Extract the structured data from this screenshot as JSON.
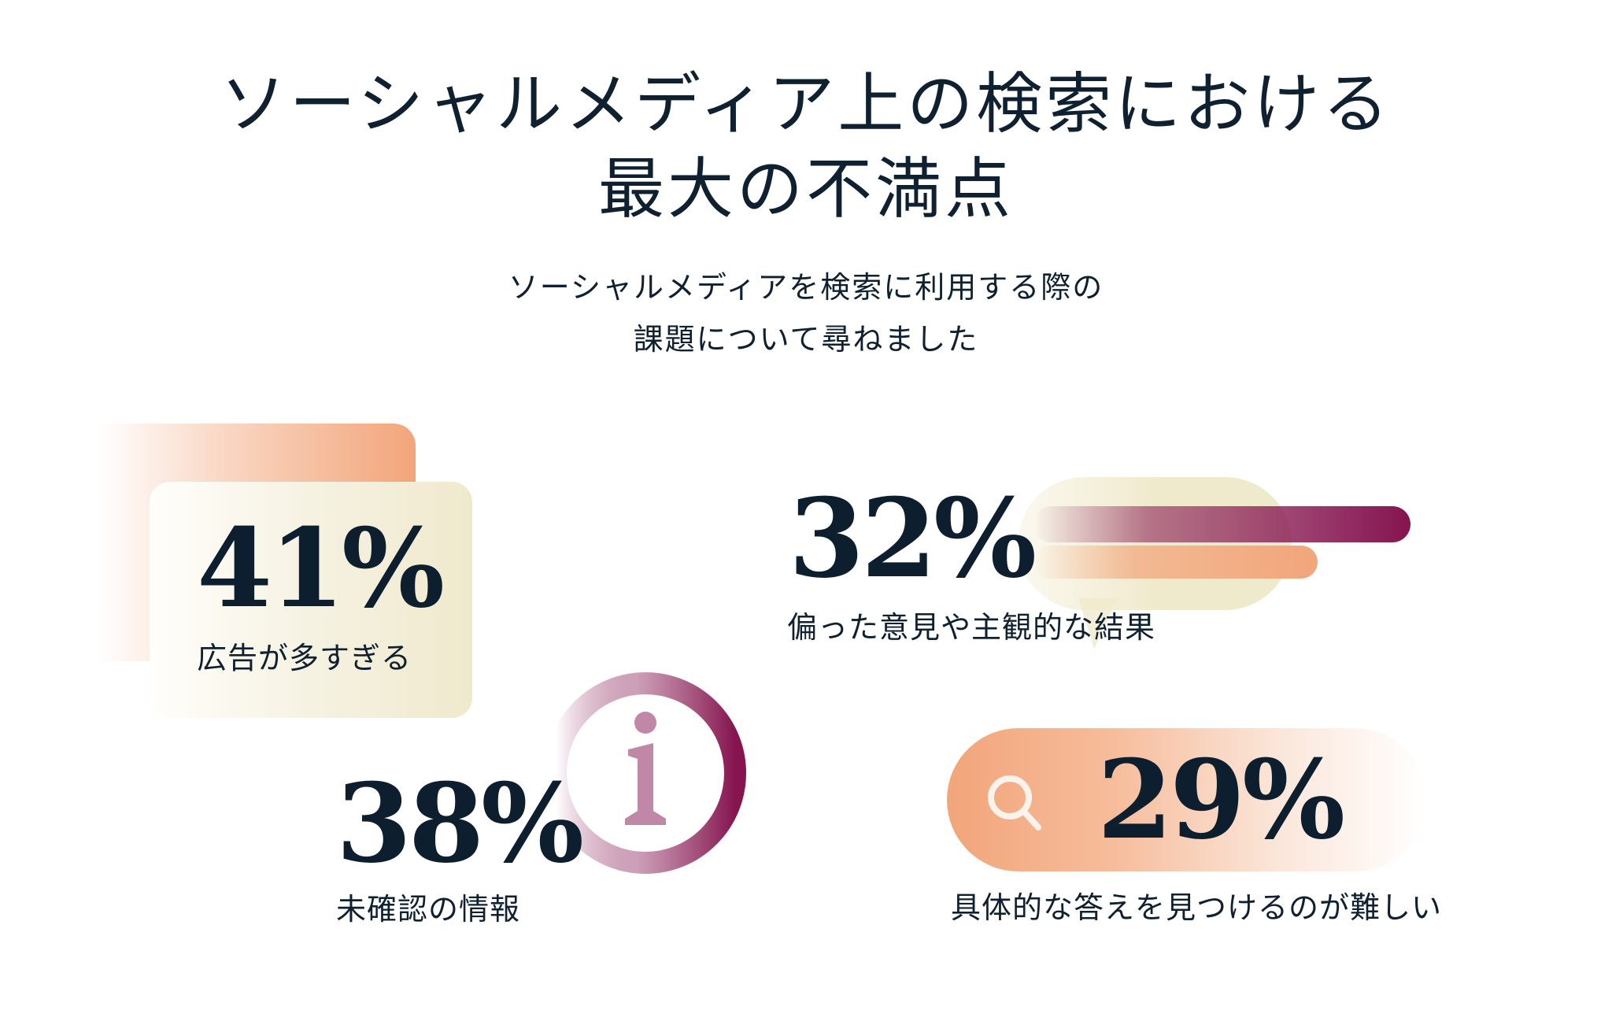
{
  "header": {
    "title_line1": "ソーシャルメディア上の検索における",
    "title_line2": "最大の不満点",
    "subtitle_line1": "ソーシャルメディアを検索に利用する際の",
    "subtitle_line2": "課題について尋ねました"
  },
  "stats": [
    {
      "value": "41%",
      "label": "広告が多すぎる",
      "percent": 41
    },
    {
      "value": "32%",
      "label": "偏った意見や主観的な結果",
      "percent": 32
    },
    {
      "value": "38%",
      "label": "未確認の情報",
      "percent": 38,
      "icon": "info-icon",
      "icon_glyph": "i"
    },
    {
      "value": "29%",
      "label": "具体的な答えを見つけるのが難しい",
      "percent": 29,
      "icon": "search-icon"
    }
  ],
  "colors": {
    "text": "#0f2030",
    "orange": "#f2a57a",
    "cream": "#efe9cc",
    "plum": "#85144f",
    "info_glyph": "#c088a6"
  }
}
